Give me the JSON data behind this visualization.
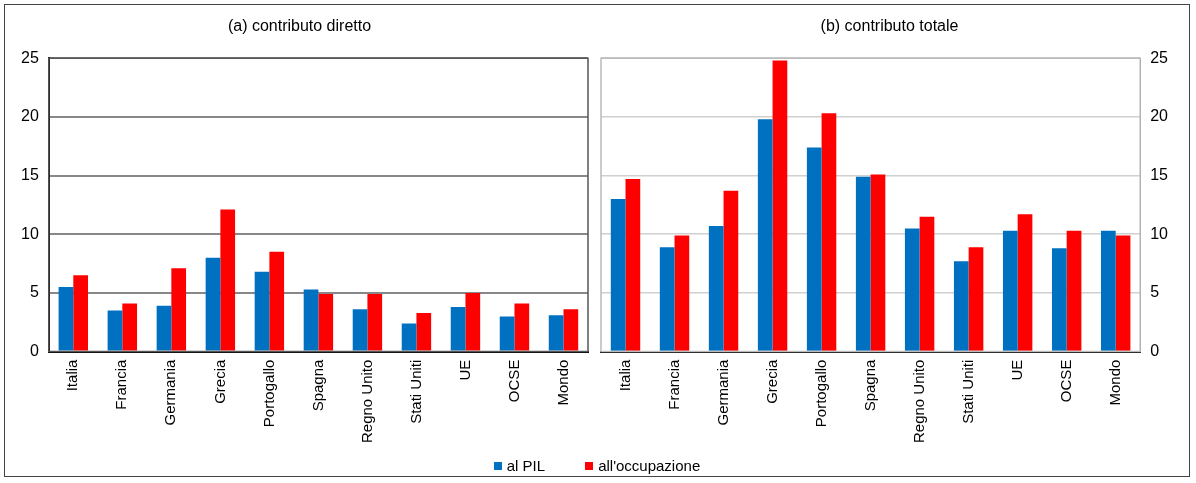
{
  "chart_data": [
    {
      "type": "bar",
      "title": "(a) contributo diretto",
      "categories": [
        "Italia",
        "Francia",
        "Germania",
        "Grecia",
        "Portogallo",
        "Spagna",
        "Regno Unito",
        "Stati Uniti",
        "UE",
        "OCSE",
        "Mondo"
      ],
      "series": [
        {
          "name": "al PIL",
          "color": "#0070c0",
          "values": [
            5.5,
            3.5,
            3.9,
            8.0,
            6.8,
            5.3,
            3.6,
            2.4,
            3.8,
            3.0,
            3.1
          ]
        },
        {
          "name": "all'occupazione",
          "color": "#ff0000",
          "values": [
            6.5,
            4.1,
            7.1,
            12.1,
            8.5,
            4.9,
            4.9,
            3.3,
            5.0,
            4.1,
            3.6
          ]
        }
      ],
      "ylim": [
        0,
        25
      ],
      "yticks": [
        0,
        5,
        10,
        15,
        20,
        25
      ],
      "grid": "y",
      "legend": "bottom"
    },
    {
      "type": "bar",
      "title": "(b) contributo totale",
      "categories": [
        "Italia",
        "Francia",
        "Germania",
        "Grecia",
        "Portogallo",
        "Spagna",
        "Regno Unito",
        "Stati Uniti",
        "UE",
        "OCSE",
        "Mondo"
      ],
      "series": [
        {
          "name": "al PIL",
          "color": "#0070c0",
          "values": [
            13.0,
            8.9,
            10.7,
            19.8,
            17.4,
            14.9,
            10.5,
            7.7,
            10.3,
            8.8,
            10.3
          ]
        },
        {
          "name": "all'occupazione",
          "color": "#ff0000",
          "values": [
            14.7,
            9.9,
            13.7,
            24.8,
            20.3,
            15.1,
            11.5,
            8.9,
            11.7,
            10.3,
            9.9
          ]
        }
      ],
      "ylim": [
        0,
        25
      ],
      "yticks": [
        0,
        5,
        10,
        15,
        20,
        25
      ],
      "grid": "y",
      "legend": "bottom"
    }
  ]
}
